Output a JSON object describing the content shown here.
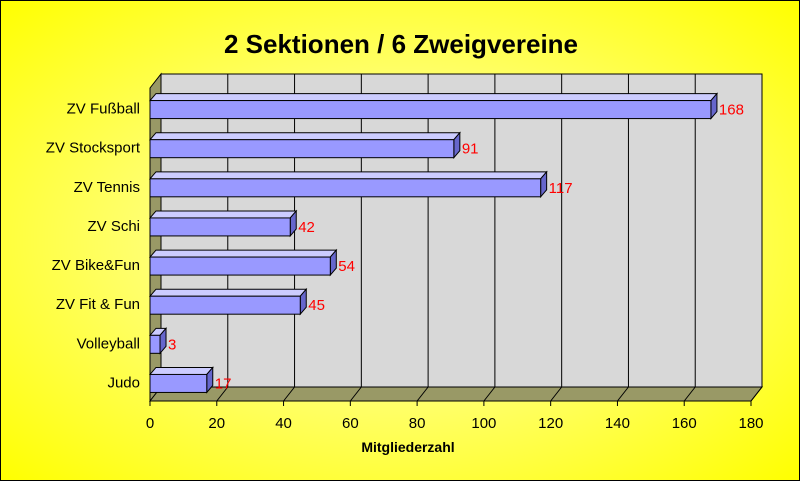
{
  "chart_data": {
    "type": "bar",
    "orientation": "horizontal",
    "title": "2 Sektionen / 6 Zweigvereine",
    "xlabel": "Mitgliederzahl",
    "ylabel": "",
    "categories": [
      "ZV Fußball",
      "ZV Stocksport",
      "ZV Tennis",
      "ZV Schi",
      "ZV Bike&Fun",
      "ZV Fit & Fun",
      "Volleyball",
      "Judo"
    ],
    "values": [
      168,
      91,
      117,
      42,
      54,
      45,
      3,
      17
    ],
    "xlim": [
      0,
      180
    ],
    "xticks": [
      0,
      20,
      40,
      60,
      80,
      100,
      120,
      140,
      160,
      180
    ],
    "grid": true,
    "legend": "none",
    "colors": {
      "bar": "#9999ff",
      "bar_top": "#ccccff",
      "bar_side": "#6666cc",
      "data_label": "#ff0000",
      "plot_back": "#d8d8d8",
      "plot_floor": "#999966",
      "background": "#ffff00"
    }
  }
}
